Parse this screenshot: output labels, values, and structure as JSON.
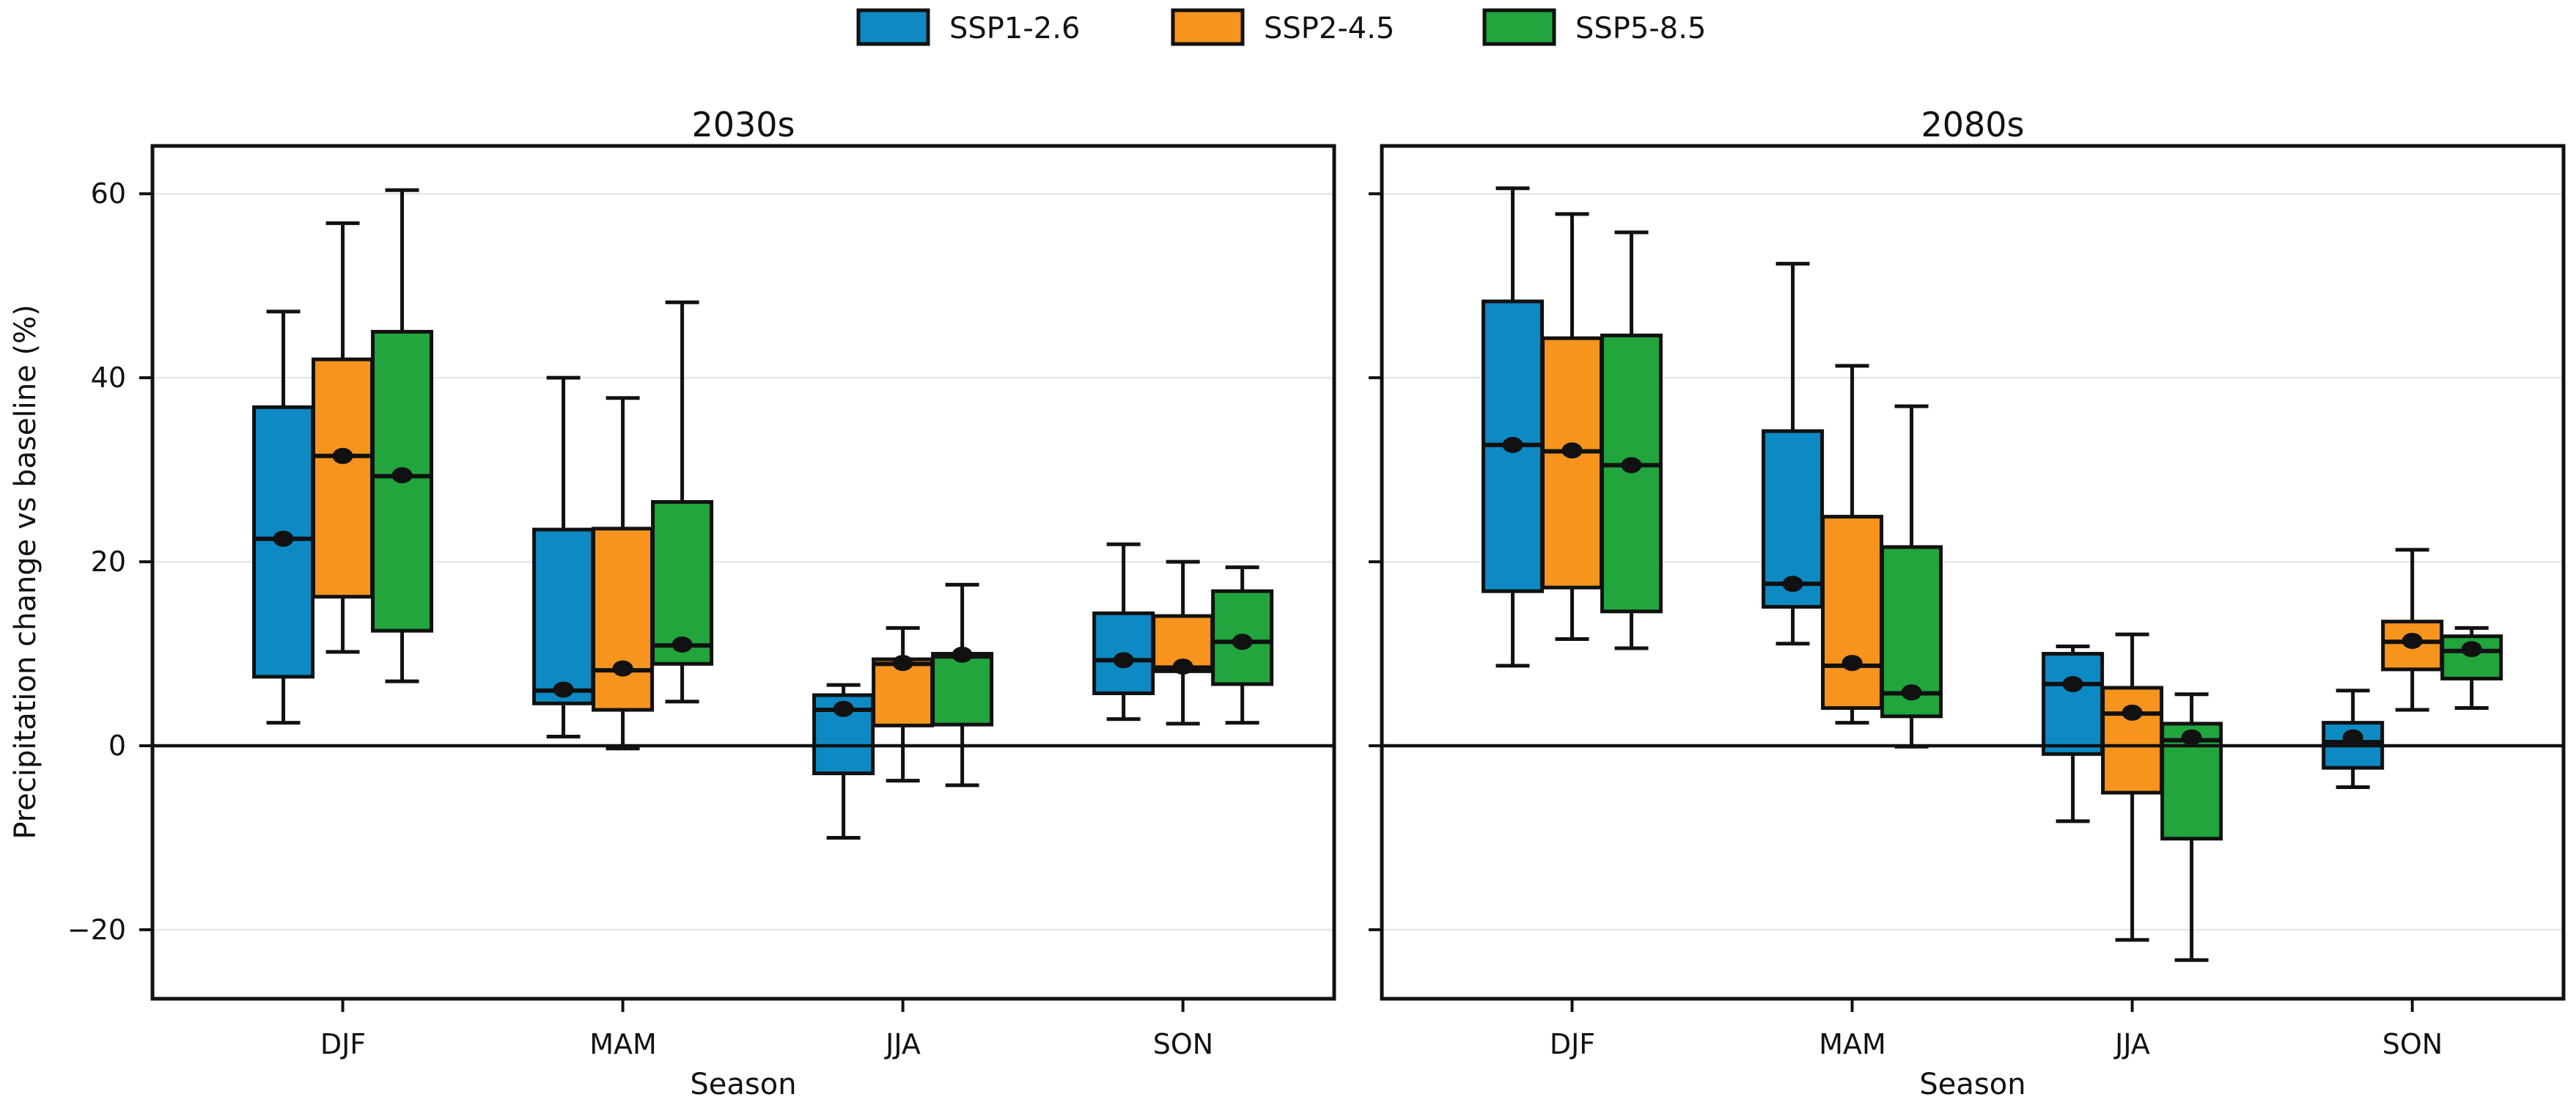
{
  "figure": {
    "background": "#ffffff"
  },
  "legend": {
    "items": [
      {
        "label": "SSP1-2.6",
        "color": "#0d8ac4"
      },
      {
        "label": "SSP2-4.5",
        "color": "#f7941e"
      },
      {
        "label": "SSP5-8.5",
        "color": "#22a53d"
      }
    ]
  },
  "ylabel": "Precipitation change vs baseline (%)",
  "xlabel": "Season",
  "axes": {
    "ytick_labels": [
      "60",
      "40",
      "20",
      "0",
      "−20"
    ],
    "yticks": [
      60,
      40,
      20,
      0,
      -20
    ],
    "ylim": [
      -27.5,
      65.2
    ],
    "grid_color": "#e6e6e6",
    "axis_color": "#111111",
    "zero_line_value": 0
  },
  "chart_data": [
    {
      "type": "box",
      "title": "2030s",
      "categories": [
        "DJF",
        "MAM",
        "JJA",
        "SON"
      ],
      "ylim": [
        -27.5,
        65.2
      ],
      "yticks": [
        -20,
        0,
        20,
        40,
        60
      ],
      "legend_position": "top-center",
      "grid": true,
      "series": [
        {
          "name": "SSP1-2.6",
          "color": "#0d8ac4",
          "boxes": [
            {
              "whislo": 2.5,
              "q1": 7.5,
              "med": 22.5,
              "mean": 22.5,
              "q3": 36.8,
              "whishi": 47.2
            },
            {
              "whislo": 1.0,
              "q1": 4.6,
              "med": 6.0,
              "mean": 6.1,
              "q3": 23.5,
              "whishi": 40.0
            },
            {
              "whislo": -10.0,
              "q1": -3.0,
              "med": 3.9,
              "mean": 4.0,
              "q3": 5.5,
              "whishi": 6.6
            },
            {
              "whislo": 2.9,
              "q1": 5.7,
              "med": 9.3,
              "mean": 9.3,
              "q3": 14.4,
              "whishi": 21.9
            }
          ]
        },
        {
          "name": "SSP2-4.5",
          "color": "#f7941e",
          "boxes": [
            {
              "whislo": 10.2,
              "q1": 16.2,
              "med": 31.5,
              "mean": 31.5,
              "q3": 42.0,
              "whishi": 56.8
            },
            {
              "whislo": -0.3,
              "q1": 3.9,
              "med": 8.2,
              "mean": 8.4,
              "q3": 23.6,
              "whishi": 37.8
            },
            {
              "whislo": -3.8,
              "q1": 2.2,
              "med": 8.9,
              "mean": 9.0,
              "q3": 9.4,
              "whishi": 12.8
            },
            {
              "whislo": 2.4,
              "q1": 8.1,
              "med": 8.5,
              "mean": 8.6,
              "q3": 14.1,
              "whishi": 20.0
            }
          ]
        },
        {
          "name": "SSP5-8.5",
          "color": "#22a53d",
          "boxes": [
            {
              "whislo": 7.0,
              "q1": 12.5,
              "med": 29.3,
              "mean": 29.4,
              "q3": 45.0,
              "whishi": 60.4
            },
            {
              "whislo": 4.8,
              "q1": 8.9,
              "med": 10.9,
              "mean": 11.0,
              "q3": 26.5,
              "whishi": 48.2
            },
            {
              "whislo": -4.3,
              "q1": 2.3,
              "med": 9.7,
              "mean": 9.9,
              "q3": 10.0,
              "whishi": 17.5
            },
            {
              "whislo": 2.5,
              "q1": 6.7,
              "med": 11.3,
              "mean": 11.3,
              "q3": 16.8,
              "whishi": 19.4
            }
          ]
        }
      ]
    },
    {
      "type": "box",
      "title": "2080s",
      "categories": [
        "DJF",
        "MAM",
        "JJA",
        "SON"
      ],
      "ylim": [
        -27.5,
        65.2
      ],
      "yticks": [
        -20,
        0,
        20,
        40,
        60
      ],
      "grid": true,
      "series": [
        {
          "name": "SSP1-2.6",
          "color": "#0d8ac4",
          "boxes": [
            {
              "whislo": 8.7,
              "q1": 16.8,
              "med": 32.7,
              "mean": 32.7,
              "q3": 48.3,
              "whishi": 60.6
            },
            {
              "whislo": 11.1,
              "q1": 15.1,
              "med": 17.6,
              "mean": 17.6,
              "q3": 34.2,
              "whishi": 52.4
            },
            {
              "whislo": -8.2,
              "q1": -0.9,
              "med": 6.7,
              "mean": 6.7,
              "q3": 10.0,
              "whishi": 10.8
            },
            {
              "whislo": -4.5,
              "q1": -2.4,
              "med": 0.4,
              "mean": 0.9,
              "q3": 2.5,
              "whishi": 6.0
            }
          ]
        },
        {
          "name": "SSP2-4.5",
          "color": "#f7941e",
          "boxes": [
            {
              "whislo": 11.6,
              "q1": 17.2,
              "med": 32.0,
              "mean": 32.1,
              "q3": 44.3,
              "whishi": 57.8
            },
            {
              "whislo": 2.5,
              "q1": 4.1,
              "med": 8.7,
              "mean": 9.0,
              "q3": 24.9,
              "whishi": 41.3
            },
            {
              "whislo": -21.1,
              "q1": -5.1,
              "med": 3.5,
              "mean": 3.6,
              "q3": 6.3,
              "whishi": 12.1
            },
            {
              "whislo": 3.9,
              "q1": 8.3,
              "med": 11.3,
              "mean": 11.4,
              "q3": 13.5,
              "whishi": 21.3
            }
          ]
        },
        {
          "name": "SSP5-8.5",
          "color": "#22a53d",
          "boxes": [
            {
              "whislo": 10.6,
              "q1": 14.6,
              "med": 30.5,
              "mean": 30.5,
              "q3": 44.6,
              "whishi": 55.8
            },
            {
              "whislo": -0.1,
              "q1": 3.2,
              "med": 5.7,
              "mean": 5.8,
              "q3": 21.6,
              "whishi": 36.9
            },
            {
              "whislo": -23.3,
              "q1": -10.1,
              "med": 0.6,
              "mean": 0.9,
              "q3": 2.4,
              "whishi": 5.6
            },
            {
              "whislo": 4.1,
              "q1": 7.3,
              "med": 10.3,
              "mean": 10.5,
              "q3": 11.9,
              "whishi": 12.8
            }
          ]
        }
      ]
    }
  ]
}
